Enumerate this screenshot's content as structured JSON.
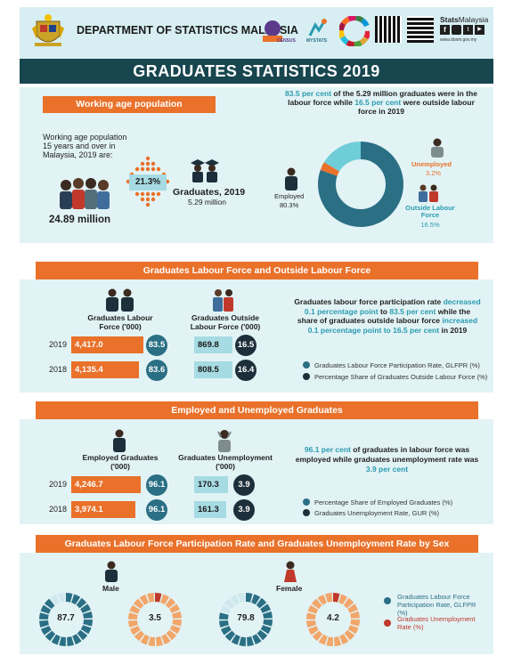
{
  "header": {
    "department": "DEPARTMENT OF STATISTICS MALAYSIA",
    "brand_prefix": "Stats",
    "brand_suffix": "Malaysia",
    "website": "www.dosm.gov.my",
    "census_label": "CENSUS",
    "mystats_label": "MYSTATS"
  },
  "title": "GRADUATES STATISTICS 2019",
  "working_age": {
    "section_title": "Working age population",
    "intro": "Working age population 15 years and over in Malaysia, 2019 are:",
    "population": "24.89 million",
    "share": "21.3%",
    "graduates_label": "Graduates, 2019",
    "graduates_value": "5.29 million",
    "summary_pre": "83.5 per cent",
    "summary_mid1": " of the 5.29 million graduates were in the labour force while ",
    "summary_hl2": "16.5 per cent",
    "summary_post": " were outside labour force in 2019",
    "donut": {
      "employed_label": "Employed",
      "employed_value": "80.3%",
      "employed_pct": 80.3,
      "unemployed_label": "Unemployed",
      "unemployed_value": "3.2%",
      "unemployed_pct": 3.2,
      "outside_label": "Outside Labour Force",
      "outside_value": "16.5%",
      "outside_pct": 16.5
    }
  },
  "labour_force": {
    "section_title": "Graduates Labour Force and Outside Labour Force",
    "col1_title": "Graduates Labour Force ('000)",
    "col2_title": "Graduates Outside Labour Force ('000)",
    "rows": [
      {
        "year": "2019",
        "lf": "4,417.0",
        "lfpr": "83.5",
        "olf": "869.8",
        "olf_share": "16.5"
      },
      {
        "year": "2018",
        "lf": "4,135.4",
        "lfpr": "83.6",
        "olf": "808.5",
        "olf_share": "16.4"
      }
    ],
    "text_pre": "Graduates labour force participation rate ",
    "text_hl1": "decreased 0.1 percentage point",
    "text_mid1": " to ",
    "text_hl2": "83.5 per cent",
    "text_mid2": " while the share of graduates outside labour force ",
    "text_hl3": "increased 0.1 percentage point to 16.5 per cent",
    "text_post": " in 2019",
    "legend1": "Graduates Labour Force Participation Rate, GLFPR (%)",
    "legend2": "Percentage Share of Graduates Outside Labour Force (%)"
  },
  "employment": {
    "section_title": "Employed and Unemployed Graduates",
    "col1_title": "Employed Graduates ('000)",
    "col2_title": "Graduates Unemployment ('000)",
    "rows": [
      {
        "year": "2019",
        "emp": "4,246.7",
        "emp_share": "96.1",
        "unemp": "170.3",
        "gur": "3.9"
      },
      {
        "year": "2018",
        "emp": "3,974.1",
        "emp_share": "96.1",
        "unemp": "161.3",
        "gur": "3.9"
      }
    ],
    "text_hl1": "96.1 per cent",
    "text_mid": " of graduates in labour force was employed while graduates unemployment rate was ",
    "text_hl2": "3.9 per cent",
    "legend1": "Percentage Share of Employed Graduates (%)",
    "legend2": "Graduates Unemployment Rate, GUR (%)"
  },
  "by_sex": {
    "section_title": "Graduates Labour Force Participation Rate and Graduates Unemployment Rate by Sex",
    "male_label": "Male",
    "female_label": "Female",
    "male_glfpr": "87.7",
    "male_gur": "3.5",
    "female_glfpr": "79.8",
    "female_gur": "4.2",
    "legend1": "Graduates Labour Force Participation Rate, GLFPR (%)",
    "legend2": "Graduates Unemployment Rate (%)"
  },
  "colors": {
    "orange": "#e9712a",
    "teal": "#2a6f84",
    "light_teal": "#6fcdd8",
    "dark": "#1c2f3a",
    "title_bar": "#18464f"
  }
}
